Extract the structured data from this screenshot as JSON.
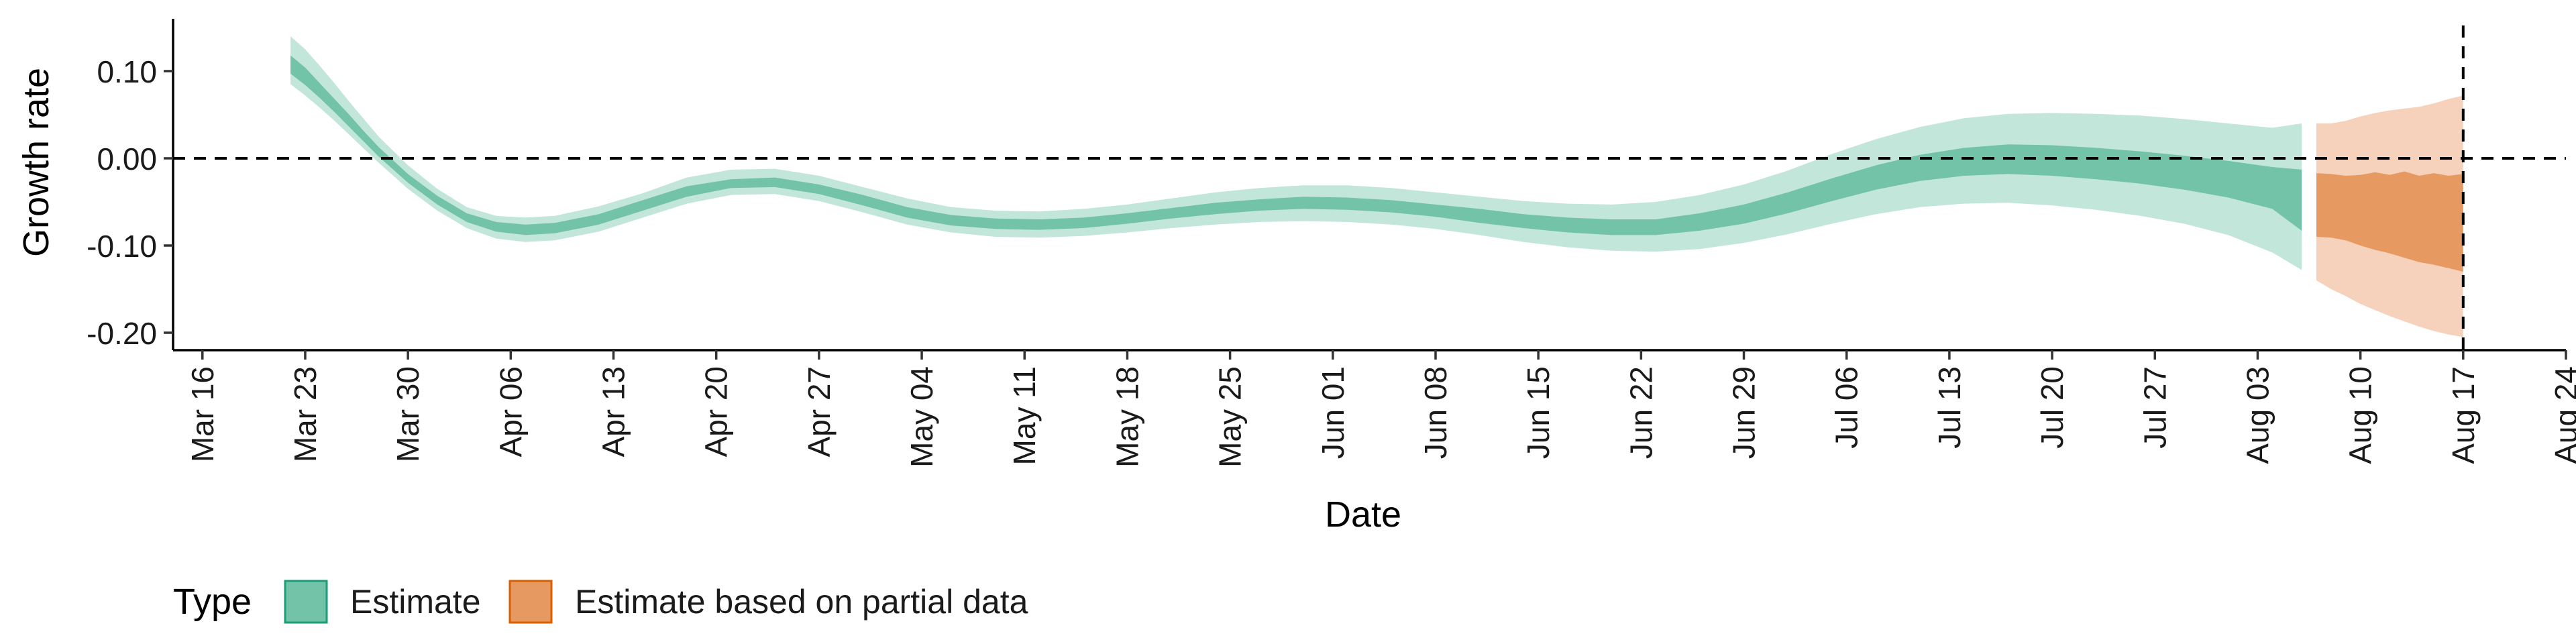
{
  "chart_data": {
    "type": "area",
    "ylabel": "Growth rate",
    "xlabel": "Date",
    "xlim": [
      "2020-03-14",
      "2020-08-24"
    ],
    "ylim": [
      -0.22,
      0.16
    ],
    "y_ticks": [
      {
        "value": 0.1,
        "label": "0.10"
      },
      {
        "value": 0.0,
        "label": "0.00"
      },
      {
        "value": -0.1,
        "label": "-0.10"
      },
      {
        "value": -0.2,
        "label": "-0.20"
      }
    ],
    "x_ticks": [
      {
        "date": "2020-03-16",
        "label": "Mar 16"
      },
      {
        "date": "2020-03-23",
        "label": "Mar 23"
      },
      {
        "date": "2020-03-30",
        "label": "Mar 30"
      },
      {
        "date": "2020-04-06",
        "label": "Apr 06"
      },
      {
        "date": "2020-04-13",
        "label": "Apr 13"
      },
      {
        "date": "2020-04-20",
        "label": "Apr 20"
      },
      {
        "date": "2020-04-27",
        "label": "Apr 27"
      },
      {
        "date": "2020-05-04",
        "label": "May 04"
      },
      {
        "date": "2020-05-11",
        "label": "May 11"
      },
      {
        "date": "2020-05-18",
        "label": "May 18"
      },
      {
        "date": "2020-05-25",
        "label": "May 25"
      },
      {
        "date": "2020-06-01",
        "label": "Jun 01"
      },
      {
        "date": "2020-06-08",
        "label": "Jun 08"
      },
      {
        "date": "2020-06-15",
        "label": "Jun 15"
      },
      {
        "date": "2020-06-22",
        "label": "Jun 22"
      },
      {
        "date": "2020-06-29",
        "label": "Jun 29"
      },
      {
        "date": "2020-07-06",
        "label": "Jul 06"
      },
      {
        "date": "2020-07-13",
        "label": "Jul 13"
      },
      {
        "date": "2020-07-20",
        "label": "Jul 20"
      },
      {
        "date": "2020-07-27",
        "label": "Jul 27"
      },
      {
        "date": "2020-08-03",
        "label": "Aug 03"
      },
      {
        "date": "2020-08-10",
        "label": "Aug 10"
      },
      {
        "date": "2020-08-17",
        "label": "Aug 17"
      },
      {
        "date": "2020-08-24",
        "label": "Aug 24"
      }
    ],
    "reference_lines": [
      {
        "axis": "y",
        "value": 0,
        "style": "dashed"
      },
      {
        "axis": "x",
        "date": "2020-08-17",
        "style": "dashed"
      }
    ],
    "grid": false,
    "legend": {
      "title": "Type",
      "position": "bottom-left",
      "entries": [
        {
          "label": "Estimate",
          "color": "#1b9e77"
        },
        {
          "label": "Estimate based on partial data",
          "color": "#d95f02"
        }
      ]
    },
    "series": [
      {
        "name": "Estimate",
        "fill_outer": "#c3e6da",
        "fill_inner": "#73c3a8",
        "points": [
          {
            "date": "2020-03-22",
            "lo90": 0.085,
            "lo50": 0.097,
            "median": 0.106,
            "hi50": 0.118,
            "hi90": 0.14
          },
          {
            "date": "2020-03-23",
            "lo90": 0.072,
            "lo50": 0.084,
            "median": 0.093,
            "hi50": 0.104,
            "hi90": 0.125
          },
          {
            "date": "2020-03-24",
            "lo90": 0.058,
            "lo50": 0.069,
            "median": 0.077,
            "hi50": 0.086,
            "hi90": 0.106
          },
          {
            "date": "2020-03-25",
            "lo90": 0.043,
            "lo50": 0.053,
            "median": 0.06,
            "hi50": 0.068,
            "hi90": 0.086
          },
          {
            "date": "2020-03-26",
            "lo90": 0.027,
            "lo50": 0.036,
            "median": 0.042,
            "hi50": 0.05,
            "hi90": 0.065
          },
          {
            "date": "2020-03-27",
            "lo90": 0.011,
            "lo50": 0.019,
            "median": 0.025,
            "hi50": 0.031,
            "hi90": 0.045
          },
          {
            "date": "2020-03-28",
            "lo90": -0.005,
            "lo50": 0.002,
            "median": 0.008,
            "hi50": 0.013,
            "hi90": 0.025
          },
          {
            "date": "2020-03-30",
            "lo90": -0.035,
            "lo50": -0.028,
            "median": -0.023,
            "hi50": -0.018,
            "hi90": -0.008
          },
          {
            "date": "2020-04-01",
            "lo90": -0.06,
            "lo50": -0.053,
            "median": -0.048,
            "hi50": -0.043,
            "hi90": -0.035
          },
          {
            "date": "2020-04-03",
            "lo90": -0.08,
            "lo50": -0.073,
            "median": -0.068,
            "hi50": -0.063,
            "hi90": -0.056
          },
          {
            "date": "2020-04-05",
            "lo90": -0.092,
            "lo50": -0.084,
            "median": -0.078,
            "hi50": -0.073,
            "hi90": -0.066
          },
          {
            "date": "2020-04-07",
            "lo90": -0.096,
            "lo50": -0.088,
            "median": -0.082,
            "hi50": -0.076,
            "hi90": -0.068
          },
          {
            "date": "2020-04-09",
            "lo90": -0.094,
            "lo50": -0.086,
            "median": -0.08,
            "hi50": -0.074,
            "hi90": -0.066
          },
          {
            "date": "2020-04-12",
            "lo90": -0.084,
            "lo50": -0.076,
            "median": -0.07,
            "hi50": -0.064,
            "hi90": -0.055
          },
          {
            "date": "2020-04-15",
            "lo90": -0.068,
            "lo50": -0.06,
            "median": -0.054,
            "hi50": -0.048,
            "hi90": -0.04
          },
          {
            "date": "2020-04-18",
            "lo90": -0.052,
            "lo50": -0.044,
            "median": -0.038,
            "hi50": -0.032,
            "hi90": -0.022
          },
          {
            "date": "2020-04-21",
            "lo90": -0.042,
            "lo50": -0.034,
            "median": -0.029,
            "hi50": -0.024,
            "hi90": -0.013
          },
          {
            "date": "2020-04-24",
            "lo90": -0.041,
            "lo50": -0.033,
            "median": -0.028,
            "hi50": -0.022,
            "hi90": -0.012
          },
          {
            "date": "2020-04-27",
            "lo90": -0.049,
            "lo50": -0.041,
            "median": -0.036,
            "hi50": -0.03,
            "hi90": -0.02
          },
          {
            "date": "2020-04-30",
            "lo90": -0.062,
            "lo50": -0.054,
            "median": -0.048,
            "hi50": -0.042,
            "hi90": -0.033
          },
          {
            "date": "2020-05-03",
            "lo90": -0.076,
            "lo50": -0.068,
            "median": -0.062,
            "hi50": -0.056,
            "hi90": -0.046
          },
          {
            "date": "2020-05-06",
            "lo90": -0.085,
            "lo50": -0.077,
            "median": -0.071,
            "hi50": -0.065,
            "hi90": -0.056
          },
          {
            "date": "2020-05-09",
            "lo90": -0.09,
            "lo50": -0.081,
            "median": -0.075,
            "hi50": -0.069,
            "hi90": -0.06
          },
          {
            "date": "2020-05-12",
            "lo90": -0.091,
            "lo50": -0.082,
            "median": -0.076,
            "hi50": -0.07,
            "hi90": -0.061
          },
          {
            "date": "2020-05-15",
            "lo90": -0.089,
            "lo50": -0.08,
            "median": -0.074,
            "hi50": -0.068,
            "hi90": -0.058
          },
          {
            "date": "2020-05-18",
            "lo90": -0.085,
            "lo50": -0.075,
            "median": -0.069,
            "hi50": -0.063,
            "hi90": -0.053
          },
          {
            "date": "2020-05-21",
            "lo90": -0.08,
            "lo50": -0.069,
            "median": -0.063,
            "hi50": -0.057,
            "hi90": -0.046
          },
          {
            "date": "2020-05-24",
            "lo90": -0.076,
            "lo50": -0.064,
            "median": -0.058,
            "hi50": -0.051,
            "hi90": -0.039
          },
          {
            "date": "2020-05-27",
            "lo90": -0.073,
            "lo50": -0.06,
            "median": -0.054,
            "hi50": -0.047,
            "hi90": -0.034
          },
          {
            "date": "2020-05-30",
            "lo90": -0.072,
            "lo50": -0.058,
            "median": -0.051,
            "hi50": -0.044,
            "hi90": -0.031
          },
          {
            "date": "2020-06-02",
            "lo90": -0.073,
            "lo50": -0.059,
            "median": -0.052,
            "hi50": -0.045,
            "hi90": -0.031
          },
          {
            "date": "2020-06-05",
            "lo90": -0.076,
            "lo50": -0.062,
            "median": -0.055,
            "hi50": -0.048,
            "hi90": -0.034
          },
          {
            "date": "2020-06-08",
            "lo90": -0.081,
            "lo50": -0.067,
            "median": -0.06,
            "hi50": -0.053,
            "hi90": -0.039
          },
          {
            "date": "2020-06-11",
            "lo90": -0.088,
            "lo50": -0.074,
            "median": -0.066,
            "hi50": -0.058,
            "hi90": -0.044
          },
          {
            "date": "2020-06-14",
            "lo90": -0.096,
            "lo50": -0.08,
            "median": -0.072,
            "hi50": -0.064,
            "hi90": -0.049
          },
          {
            "date": "2020-06-17",
            "lo90": -0.102,
            "lo50": -0.085,
            "median": -0.077,
            "hi50": -0.068,
            "hi90": -0.052
          },
          {
            "date": "2020-06-20",
            "lo90": -0.106,
            "lo50": -0.088,
            "median": -0.079,
            "hi50": -0.07,
            "hi90": -0.053
          },
          {
            "date": "2020-06-23",
            "lo90": -0.107,
            "lo50": -0.088,
            "median": -0.079,
            "hi50": -0.07,
            "hi90": -0.05
          },
          {
            "date": "2020-06-26",
            "lo90": -0.104,
            "lo50": -0.083,
            "median": -0.073,
            "hi50": -0.063,
            "hi90": -0.042
          },
          {
            "date": "2020-06-29",
            "lo90": -0.097,
            "lo50": -0.075,
            "median": -0.064,
            "hi50": -0.053,
            "hi90": -0.03
          },
          {
            "date": "2020-07-02",
            "lo90": -0.087,
            "lo50": -0.063,
            "median": -0.051,
            "hi50": -0.039,
            "hi90": -0.014
          },
          {
            "date": "2020-07-05",
            "lo90": -0.075,
            "lo50": -0.049,
            "median": -0.036,
            "hi50": -0.023,
            "hi90": 0.005
          },
          {
            "date": "2020-07-08",
            "lo90": -0.064,
            "lo50": -0.036,
            "median": -0.022,
            "hi50": -0.008,
            "hi90": 0.022
          },
          {
            "date": "2020-07-11",
            "lo90": -0.056,
            "lo50": -0.026,
            "median": -0.011,
            "hi50": 0.004,
            "hi90": 0.036
          },
          {
            "date": "2020-07-14",
            "lo90": -0.052,
            "lo50": -0.02,
            "median": -0.004,
            "hi50": 0.012,
            "hi90": 0.046
          },
          {
            "date": "2020-07-17",
            "lo90": -0.051,
            "lo50": -0.018,
            "median": -0.001,
            "hi50": 0.016,
            "hi90": 0.051
          },
          {
            "date": "2020-07-20",
            "lo90": -0.054,
            "lo50": -0.02,
            "median": -0.002,
            "hi50": 0.015,
            "hi90": 0.052
          },
          {
            "date": "2020-07-23",
            "lo90": -0.059,
            "lo50": -0.024,
            "median": -0.005,
            "hi50": 0.012,
            "hi90": 0.051
          },
          {
            "date": "2020-07-26",
            "lo90": -0.066,
            "lo50": -0.029,
            "median": -0.01,
            "hi50": 0.008,
            "hi90": 0.049
          },
          {
            "date": "2020-07-29",
            "lo90": -0.075,
            "lo50": -0.036,
            "median": -0.016,
            "hi50": 0.003,
            "hi90": 0.045
          },
          {
            "date": "2020-08-01",
            "lo90": -0.088,
            "lo50": -0.045,
            "median": -0.024,
            "hi50": -0.003,
            "hi90": 0.04
          },
          {
            "date": "2020-08-04",
            "lo90": -0.108,
            "lo50": -0.058,
            "median": -0.035,
            "hi50": -0.01,
            "hi90": 0.035
          },
          {
            "date": "2020-08-06",
            "lo90": -0.128,
            "lo50": -0.083,
            "median": -0.05,
            "hi50": -0.013,
            "hi90": 0.04
          }
        ]
      },
      {
        "name": "Estimate based on partial data",
        "fill_outer": "#f6d2bc",
        "fill_inner": "#e69a61",
        "points": [
          {
            "date": "2020-08-07",
            "lo90": -0.14,
            "lo50": -0.09,
            "median": -0.055,
            "hi50": -0.017,
            "hi90": 0.04
          },
          {
            "date": "2020-08-08",
            "lo90": -0.15,
            "lo50": -0.091,
            "median": -0.056,
            "hi50": -0.018,
            "hi90": 0.04
          },
          {
            "date": "2020-08-09",
            "lo90": -0.158,
            "lo50": -0.094,
            "median": -0.058,
            "hi50": -0.02,
            "hi90": 0.043
          },
          {
            "date": "2020-08-10",
            "lo90": -0.167,
            "lo50": -0.1,
            "median": -0.06,
            "hi50": -0.019,
            "hi90": 0.048
          },
          {
            "date": "2020-08-11",
            "lo90": -0.174,
            "lo50": -0.105,
            "median": -0.062,
            "hi50": -0.016,
            "hi90": 0.052
          },
          {
            "date": "2020-08-12",
            "lo90": -0.181,
            "lo50": -0.109,
            "median": -0.064,
            "hi50": -0.019,
            "hi90": 0.055
          },
          {
            "date": "2020-08-13",
            "lo90": -0.187,
            "lo50": -0.114,
            "median": -0.066,
            "hi50": -0.015,
            "hi90": 0.057
          },
          {
            "date": "2020-08-14",
            "lo90": -0.193,
            "lo50": -0.119,
            "median": -0.068,
            "hi50": -0.02,
            "hi90": 0.059
          },
          {
            "date": "2020-08-15",
            "lo90": -0.198,
            "lo50": -0.122,
            "median": -0.07,
            "hi50": -0.017,
            "hi90": 0.063
          },
          {
            "date": "2020-08-16",
            "lo90": -0.202,
            "lo50": -0.126,
            "median": -0.072,
            "hi50": -0.02,
            "hi90": 0.068
          },
          {
            "date": "2020-08-17",
            "lo90": -0.205,
            "lo50": -0.13,
            "median": -0.074,
            "hi50": -0.018,
            "hi90": 0.072
          }
        ]
      }
    ]
  }
}
